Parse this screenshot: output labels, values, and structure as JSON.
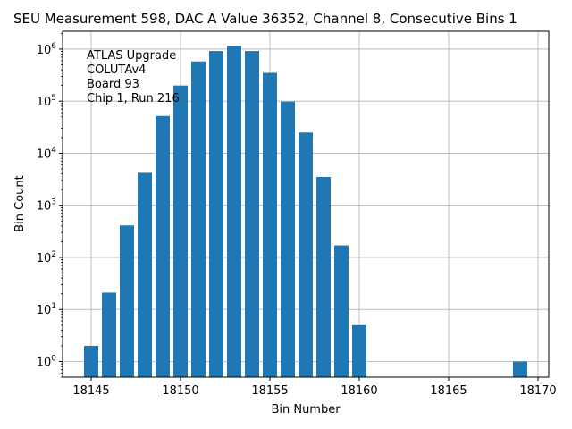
{
  "chart_data": {
    "type": "bar",
    "title": "SEU Measurement 598, DAC A Value 36352, Channel 8, Consecutive Bins 1",
    "xlabel": "Bin Number",
    "ylabel": "Bin Count",
    "yscale": "log",
    "grid": true,
    "xlim": [
      18143.4,
      18170.6
    ],
    "ylim": [
      0.5,
      2200000
    ],
    "bar_color": "#1f77b4",
    "x_ticks": [
      {
        "value": 18145,
        "label": "18145"
      },
      {
        "value": 18150,
        "label": "18150"
      },
      {
        "value": 18155,
        "label": "18155"
      },
      {
        "value": 18160,
        "label": "18160"
      },
      {
        "value": 18165,
        "label": "18165"
      },
      {
        "value": 18170,
        "label": "18170"
      }
    ],
    "y_ticks": [
      {
        "value": 1,
        "base": "10",
        "exp": "0"
      },
      {
        "value": 10,
        "base": "10",
        "exp": "1"
      },
      {
        "value": 100,
        "base": "10",
        "exp": "2"
      },
      {
        "value": 1000,
        "base": "10",
        "exp": "3"
      },
      {
        "value": 10000,
        "base": "10",
        "exp": "4"
      },
      {
        "value": 100000,
        "base": "10",
        "exp": "5"
      },
      {
        "value": 1000000,
        "base": "10",
        "exp": "6"
      }
    ],
    "x": [
      18145,
      18146,
      18147,
      18148,
      18149,
      18150,
      18151,
      18152,
      18153,
      18154,
      18155,
      18156,
      18157,
      18158,
      18159,
      18160,
      18169
    ],
    "values": [
      2,
      21,
      410,
      4200,
      52000,
      200000,
      580000,
      920000,
      1150000,
      920000,
      350000,
      98000,
      25000,
      3500,
      170,
      5,
      1
    ],
    "annotation": [
      "ATLAS Upgrade",
      "COLUTAv4",
      " Board 93",
      "Chip 1, Run 216"
    ]
  }
}
